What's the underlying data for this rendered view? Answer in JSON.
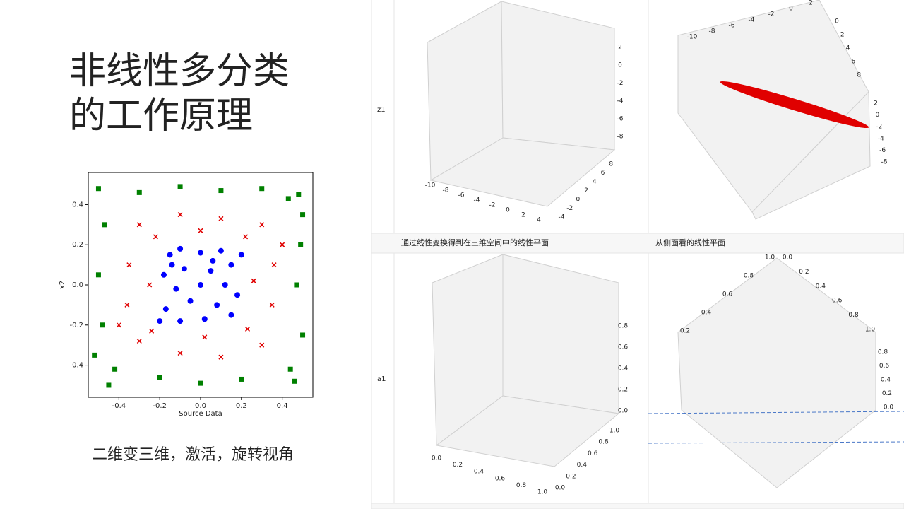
{
  "title_lines": [
    "非线性多分类",
    "的工作原理"
  ],
  "caption": "二维变三维，激活，旋转视角",
  "chart_data": {
    "type": "scatter",
    "xlabel": "Source Data",
    "ylabel": "x2",
    "xlim": [
      -0.55,
      0.55
    ],
    "ylim": [
      -0.56,
      0.56
    ],
    "xticks": [
      -0.4,
      -0.2,
      {
        "value": 0,
        "label": "0.0"
      },
      0.2,
      0.4
    ],
    "yticks": [
      -0.4,
      -0.2,
      {
        "value": 0,
        "label": "0.0"
      },
      0.2,
      0.4
    ],
    "series": [
      {
        "marker": "square",
        "color": "#008000",
        "x": [
          -0.5,
          -0.3,
          -0.1,
          0.1,
          0.3,
          0.48,
          0.49,
          0.47,
          0.5,
          0.46,
          0.2,
          0.0,
          -0.2,
          -0.45,
          -0.48,
          -0.5,
          -0.47,
          -0.42,
          0.43,
          0.44,
          -0.52,
          0.5
        ],
        "y": [
          0.48,
          0.46,
          0.49,
          0.47,
          0.48,
          0.45,
          0.2,
          0.0,
          -0.25,
          -0.48,
          -0.47,
          -0.49,
          -0.46,
          -0.5,
          -0.2,
          0.05,
          0.3,
          -0.42,
          0.43,
          -0.42,
          -0.35,
          0.35
        ]
      },
      {
        "marker": "cross",
        "color": "#e00000",
        "x": [
          -0.3,
          -0.1,
          0.1,
          0.3,
          0.36,
          0.35,
          0.3,
          0.1,
          -0.1,
          -0.3,
          -0.36,
          -0.35,
          -0.25,
          0.26,
          0.0,
          0.02,
          -0.22,
          0.23,
          0.22,
          -0.24,
          0.4,
          -0.4
        ],
        "y": [
          0.3,
          0.35,
          0.33,
          0.3,
          0.1,
          -0.1,
          -0.3,
          -0.36,
          -0.34,
          -0.28,
          -0.1,
          0.1,
          0.0,
          0.02,
          0.27,
          -0.26,
          0.24,
          -0.22,
          0.24,
          -0.23,
          0.2,
          -0.2
        ]
      },
      {
        "marker": "circle",
        "color": "#0000ff",
        "x": [
          -0.15,
          -0.1,
          0.0,
          0.1,
          0.15,
          -0.18,
          -0.08,
          0.05,
          0.12,
          -0.12,
          0.0,
          0.18,
          -0.05,
          0.08,
          -0.17,
          0.15,
          -0.1,
          0.02,
          0.2,
          -0.2,
          0.06,
          -0.14
        ],
        "y": [
          0.15,
          0.18,
          0.16,
          0.17,
          0.1,
          0.05,
          0.08,
          0.07,
          0.0,
          -0.02,
          0.0,
          -0.05,
          -0.08,
          -0.1,
          -0.12,
          -0.15,
          -0.18,
          -0.17,
          0.15,
          -0.18,
          0.12,
          0.1
        ]
      }
    ]
  },
  "grid": {
    "row_labels": [
      "z1",
      "a1"
    ],
    "captions": [
      "通过线性变换得到在三维空间中的线性平面",
      "从侧面看的线性平面"
    ],
    "plots": [
      {
        "axes": [
          [
            "2",
            "0",
            "-2",
            "-4",
            "-6",
            "-8"
          ],
          [
            "-10",
            "-8",
            "-6",
            "-4",
            "-2",
            "0",
            "2",
            "4"
          ],
          [
            "-4",
            "-2",
            "0",
            "2",
            "4",
            "6",
            "8"
          ]
        ]
      },
      {
        "axes": [
          [
            "-10",
            "-8",
            "-6",
            "-4",
            "-2",
            "0",
            "2"
          ],
          [
            "0",
            "2",
            "4",
            "6",
            "8"
          ],
          [
            "2",
            "0",
            "-2",
            "-4",
            "-6",
            "-8"
          ]
        ]
      },
      {
        "axes": [
          [
            "0.0",
            "0.2",
            "0.4",
            "0.6",
            "0.8"
          ],
          [
            "0.0",
            "0.2",
            "0.4",
            "0.6",
            "0.8",
            "1.0"
          ],
          [
            "0.0",
            "0.2",
            "0.4",
            "0.6",
            "0.8",
            "1.0"
          ]
        ]
      },
      {
        "axes": [
          [
            "0.2",
            "0.4",
            "0.6",
            "0.8",
            "1.0"
          ],
          [
            "0.0",
            "0.2",
            "0.4",
            "0.6",
            "0.8",
            "1.0"
          ],
          [
            "0.0",
            "0.2",
            "0.4",
            "0.6",
            "0.8"
          ]
        ]
      }
    ]
  }
}
